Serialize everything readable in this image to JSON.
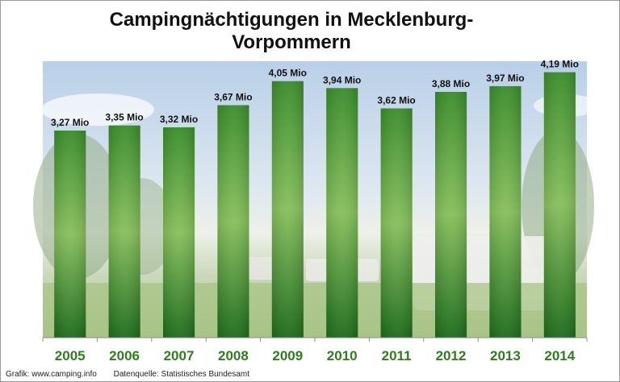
{
  "title": {
    "line1": "Campingnächtigungen in Mecklenburg-",
    "line2": "Vorpommern"
  },
  "chart_data": {
    "type": "bar",
    "title": "Campingnächtigungen in Mecklenburg-Vorpommern",
    "categories": [
      "2005",
      "2006",
      "2007",
      "2008",
      "2009",
      "2010",
      "2011",
      "2012",
      "2013",
      "2014"
    ],
    "values": [
      3.27,
      3.35,
      3.32,
      3.67,
      4.05,
      3.94,
      3.62,
      3.88,
      3.97,
      4.19
    ],
    "labels": [
      "3,27 Mio",
      "3,35 Mio",
      "3,32 Mio",
      "3,67 Mio",
      "4,05 Mio",
      "3,94 Mio",
      "3,62 Mio",
      "3,88 Mio",
      "3,97 Mio",
      "4,19 Mio"
    ],
    "unit": "Mio",
    "ylim": [
      0,
      4.3
    ],
    "xlabel": "",
    "ylabel": "",
    "grid": false,
    "bar_color": "#3f9a2c"
  },
  "footer": {
    "source_graphic": "Grafik: www.camping.info",
    "source_data": "Datenquelle:  Statistisches Bundesamt"
  }
}
